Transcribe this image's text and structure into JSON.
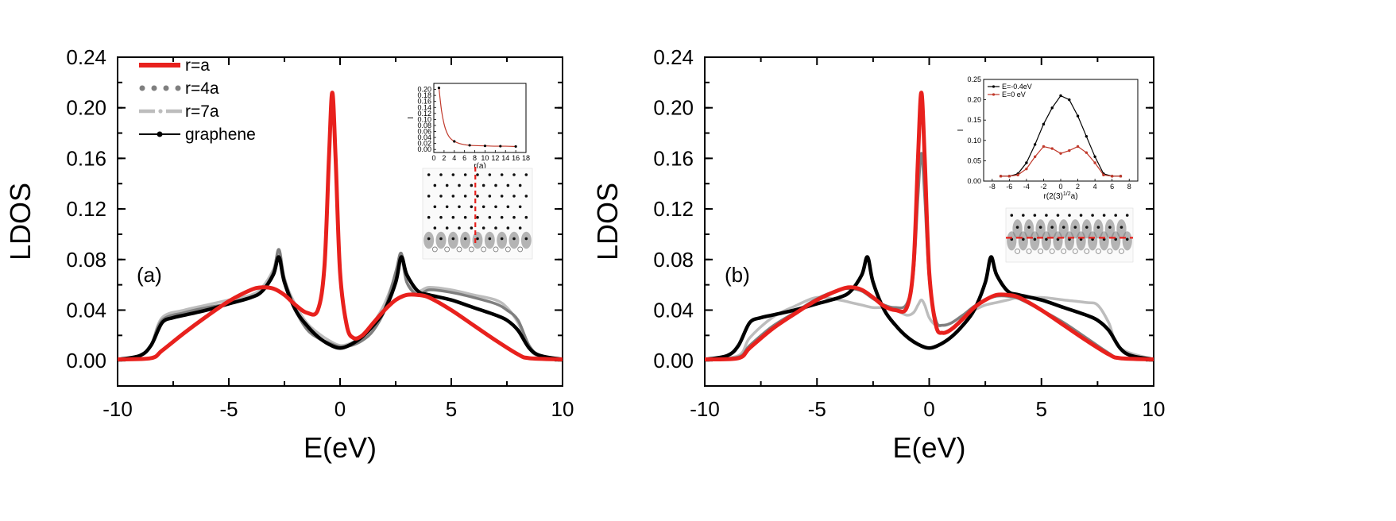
{
  "chart_data": [
    {
      "panel": "a",
      "type": "line",
      "panel_label": "(a)",
      "xlabel": "E(eV)",
      "ylabel": "LDOS",
      "xlim": [
        -10,
        10
      ],
      "ylim": [
        -0.02,
        0.24
      ],
      "xticks": [
        -10,
        -5,
        0,
        5,
        10
      ],
      "xtick_labels": [
        "-10",
        "-5",
        "0",
        "5",
        "10"
      ],
      "yticks": [
        0.0,
        0.04,
        0.08,
        0.12,
        0.16,
        0.2,
        0.24
      ],
      "ytick_labels": [
        "0.00",
        "0.04",
        "0.08",
        "0.12",
        "0.16",
        "0.20",
        "0.24"
      ],
      "legend": [
        {
          "label": "r=a",
          "color": "#e8211d",
          "style": "solid"
        },
        {
          "label": "r=4a",
          "color": "#7f7f7f",
          "style": "dotted"
        },
        {
          "label": "r=7a",
          "color": "#bdbdbd",
          "style": "dashdot"
        },
        {
          "label": "graphene",
          "color": "#000000",
          "style": "line-dot"
        }
      ],
      "series": [
        {
          "name": "r=a",
          "color": "#e8211d",
          "x": [
            -10,
            -8.5,
            -8,
            -7,
            -6,
            -5,
            -4,
            -3.5,
            -3,
            -2.5,
            -2,
            -1.5,
            -1,
            -0.7,
            -0.5,
            -0.35,
            -0.2,
            0,
            0.3,
            0.6,
            1,
            1.5,
            2,
            2.5,
            3,
            3.5,
            4,
            5,
            6,
            7,
            8,
            8.5,
            10
          ],
          "values": [
            0.001,
            0.002,
            0.008,
            0.022,
            0.035,
            0.047,
            0.056,
            0.058,
            0.057,
            0.052,
            0.044,
            0.038,
            0.04,
            0.075,
            0.16,
            0.212,
            0.16,
            0.07,
            0.028,
            0.018,
            0.02,
            0.03,
            0.04,
            0.048,
            0.052,
            0.052,
            0.05,
            0.04,
            0.028,
            0.016,
            0.005,
            0.002,
            0.001
          ]
        },
        {
          "name": "r=4a",
          "color": "#7f7f7f",
          "x": [
            -10,
            -9,
            -8.5,
            -8,
            -7,
            -6,
            -5,
            -4,
            -3.5,
            -3,
            -2.75,
            -2.5,
            -2,
            -1.5,
            -1,
            -0.5,
            0,
            0.5,
            1,
            1.5,
            2,
            2.5,
            2.75,
            3,
            3.5,
            4,
            5,
            6,
            7,
            7.5,
            8,
            8.5,
            9,
            10
          ],
          "values": [
            0.001,
            0.004,
            0.012,
            0.032,
            0.038,
            0.042,
            0.045,
            0.05,
            0.055,
            0.07,
            0.088,
            0.065,
            0.04,
            0.025,
            0.018,
            0.014,
            0.011,
            0.012,
            0.016,
            0.024,
            0.04,
            0.07,
            0.085,
            0.062,
            0.052,
            0.056,
            0.054,
            0.05,
            0.045,
            0.04,
            0.032,
            0.012,
            0.004,
            0.001
          ]
        },
        {
          "name": "r=7a",
          "color": "#bdbdbd",
          "x": [
            -10,
            -9,
            -8.5,
            -8,
            -7,
            -6,
            -5,
            -4,
            -3.5,
            -3,
            -2.75,
            -2.5,
            -2,
            -1.5,
            -1,
            -0.5,
            0,
            0.5,
            1,
            1.5,
            2,
            2.5,
            2.75,
            3,
            3.5,
            4,
            5,
            6,
            7,
            7.5,
            8,
            8.5,
            9,
            10
          ],
          "values": [
            0.001,
            0.004,
            0.012,
            0.034,
            0.04,
            0.044,
            0.048,
            0.052,
            0.058,
            0.072,
            0.086,
            0.064,
            0.044,
            0.03,
            0.022,
            0.016,
            0.012,
            0.014,
            0.02,
            0.03,
            0.045,
            0.068,
            0.082,
            0.062,
            0.055,
            0.058,
            0.056,
            0.052,
            0.048,
            0.042,
            0.03,
            0.01,
            0.003,
            0.001
          ]
        },
        {
          "name": "graphene",
          "color": "#000000",
          "x": [
            -10,
            -9,
            -8.5,
            -8,
            -7.5,
            -7,
            -6,
            -5,
            -4,
            -3.5,
            -3,
            -2.75,
            -2.5,
            -2,
            -1.5,
            -1,
            -0.5,
            0,
            0.5,
            1,
            1.5,
            2,
            2.5,
            2.75,
            3,
            3.5,
            4,
            5,
            6,
            7,
            7.5,
            8,
            8.5,
            9,
            10
          ],
          "values": [
            0.001,
            0.004,
            0.012,
            0.03,
            0.034,
            0.036,
            0.04,
            0.045,
            0.05,
            0.055,
            0.068,
            0.082,
            0.062,
            0.04,
            0.028,
            0.019,
            0.013,
            0.01,
            0.013,
            0.019,
            0.028,
            0.04,
            0.062,
            0.082,
            0.068,
            0.055,
            0.052,
            0.048,
            0.042,
            0.036,
            0.032,
            0.024,
            0.01,
            0.004,
            0.001
          ]
        }
      ],
      "inset": {
        "type": "line",
        "xlabel": "r(a)",
        "ylabel": "I",
        "xlim": [
          0,
          18
        ],
        "ylim": [
          -0.01,
          0.22
        ],
        "xticks": [
          0,
          2,
          4,
          6,
          8,
          10,
          12,
          14,
          16,
          18
        ],
        "xtick_labels": [
          "0",
          "2",
          "4",
          "6",
          "8",
          "10",
          "12",
          "14",
          "16",
          "18"
        ],
        "yticks": [
          0.0,
          0.02,
          0.04,
          0.06,
          0.08,
          0.1,
          0.12,
          0.14,
          0.16,
          0.18,
          0.2
        ],
        "ytick_labels": [
          "0.00",
          "0.02",
          "0.04",
          "0.06",
          "0.08",
          "0.10",
          "0.12",
          "0.14",
          "0.16",
          "0.18",
          "0.20"
        ],
        "series": [
          {
            "name": "fit",
            "color": "#c0392b",
            "style": "line",
            "x": [
              1,
              1.5,
              2,
              2.5,
              3,
              3.5,
              4,
              5,
              6,
              7,
              8,
              10,
              12,
              14,
              16
            ],
            "values": [
              0.205,
              0.13,
              0.085,
              0.058,
              0.042,
              0.033,
              0.027,
              0.02,
              0.016,
              0.014,
              0.013,
              0.012,
              0.011,
              0.011,
              0.01
            ]
          },
          {
            "name": "data",
            "color": "#000000",
            "style": "markers",
            "x": [
              1,
              4,
              7,
              10,
              13,
              16
            ],
            "values": [
              0.205,
              0.027,
              0.014,
              0.012,
              0.011,
              0.01
            ]
          }
        ]
      }
    },
    {
      "panel": "b",
      "type": "line",
      "panel_label": "(b)",
      "xlabel": "E(eV)",
      "ylabel": "LDOS",
      "xlim": [
        -10,
        10
      ],
      "ylim": [
        -0.02,
        0.24
      ],
      "xticks": [
        -10,
        -5,
        0,
        5,
        10
      ],
      "xtick_labels": [
        "-10",
        "-5",
        "0",
        "5",
        "10"
      ],
      "yticks": [
        0.0,
        0.04,
        0.08,
        0.12,
        0.16,
        0.2,
        0.24
      ],
      "ytick_labels": [
        "0.00",
        "0.04",
        "0.08",
        "0.12",
        "0.16",
        "0.20",
        "0.24"
      ],
      "series": [
        {
          "name": "r=a",
          "color": "#e8211d",
          "x": [
            -10,
            -8.5,
            -8,
            -7,
            -6,
            -5,
            -4,
            -3.5,
            -3,
            -2.5,
            -2,
            -1.5,
            -1,
            -0.7,
            -0.5,
            -0.35,
            -0.2,
            0,
            0.3,
            0.6,
            1,
            1.5,
            2,
            2.5,
            3,
            3.5,
            4,
            5,
            6,
            7,
            8,
            8.5,
            10
          ],
          "values": [
            0.001,
            0.002,
            0.01,
            0.025,
            0.037,
            0.048,
            0.056,
            0.058,
            0.056,
            0.05,
            0.043,
            0.04,
            0.042,
            0.075,
            0.16,
            0.212,
            0.16,
            0.07,
            0.028,
            0.022,
            0.025,
            0.033,
            0.042,
            0.048,
            0.052,
            0.052,
            0.05,
            0.04,
            0.028,
            0.016,
            0.005,
            0.002,
            0.001
          ]
        },
        {
          "name": "r=4a",
          "color": "#7f7f7f",
          "x": [
            -10,
            -8.5,
            -8,
            -7,
            -6,
            -5,
            -4,
            -3.5,
            -3,
            -2.5,
            -2,
            -1.5,
            -1,
            -0.7,
            -0.5,
            -0.35,
            -0.2,
            0,
            0.3,
            0.6,
            1,
            1.5,
            2,
            2.5,
            3,
            3.5,
            4,
            5,
            6,
            7,
            8,
            8.5,
            10
          ],
          "values": [
            0.001,
            0.003,
            0.012,
            0.027,
            0.038,
            0.049,
            0.056,
            0.057,
            0.055,
            0.049,
            0.044,
            0.042,
            0.045,
            0.07,
            0.13,
            0.164,
            0.13,
            0.065,
            0.032,
            0.028,
            0.03,
            0.036,
            0.043,
            0.048,
            0.051,
            0.051,
            0.049,
            0.04,
            0.03,
            0.018,
            0.006,
            0.002,
            0.001
          ]
        },
        {
          "name": "r=7a",
          "color": "#bdbdbd",
          "x": [
            -10,
            -8.5,
            -8,
            -7,
            -6,
            -5,
            -4,
            -3.5,
            -3,
            -2.5,
            -2,
            -1.5,
            -1,
            -0.7,
            -0.5,
            -0.35,
            -0.2,
            0,
            0.3,
            0.6,
            1,
            1.5,
            2,
            2.5,
            3,
            3.5,
            4,
            5,
            6,
            7,
            7.5,
            8,
            8.5,
            10
          ],
          "values": [
            0.001,
            0.004,
            0.018,
            0.034,
            0.043,
            0.05,
            0.048,
            0.046,
            0.044,
            0.042,
            0.042,
            0.04,
            0.036,
            0.038,
            0.044,
            0.048,
            0.044,
            0.034,
            0.028,
            0.028,
            0.03,
            0.036,
            0.04,
            0.044,
            0.046,
            0.048,
            0.05,
            0.05,
            0.048,
            0.046,
            0.044,
            0.03,
            0.01,
            0.001
          ]
        },
        {
          "name": "graphene",
          "color": "#000000",
          "x": [
            -10,
            -9,
            -8.5,
            -8,
            -7.5,
            -7,
            -6,
            -5,
            -4,
            -3.5,
            -3,
            -2.75,
            -2.5,
            -2,
            -1.5,
            -1,
            -0.5,
            0,
            0.5,
            1,
            1.5,
            2,
            2.5,
            2.75,
            3,
            3.5,
            4,
            5,
            6,
            7,
            7.5,
            8,
            8.5,
            9,
            10
          ],
          "values": [
            0.001,
            0.004,
            0.012,
            0.03,
            0.034,
            0.036,
            0.04,
            0.045,
            0.05,
            0.055,
            0.068,
            0.082,
            0.062,
            0.04,
            0.028,
            0.019,
            0.013,
            0.01,
            0.013,
            0.019,
            0.028,
            0.04,
            0.062,
            0.082,
            0.068,
            0.055,
            0.052,
            0.048,
            0.042,
            0.036,
            0.032,
            0.024,
            0.01,
            0.004,
            0.001
          ]
        }
      ],
      "inset": {
        "type": "line",
        "xlabel": "r(2(3)",
        "xlabel_superscript": "1/2",
        "xlabel_suffix": "a)",
        "ylabel": "I",
        "xlim": [
          -9,
          9
        ],
        "ylim": [
          0.0,
          0.25
        ],
        "xticks": [
          -8,
          -6,
          -4,
          -2,
          0,
          2,
          4,
          6,
          8
        ],
        "xtick_labels": [
          "-8",
          "-6",
          "-4",
          "-2",
          "0",
          "2",
          "4",
          "6",
          "8"
        ],
        "yticks": [
          0.0,
          0.05,
          0.1,
          0.15,
          0.2,
          0.25
        ],
        "ytick_labels": [
          "0.00",
          "0.05",
          "0.10",
          "0.15",
          "0.20",
          "0.25"
        ],
        "legend": [
          {
            "label": "E=-0.4eV",
            "color": "#000000"
          },
          {
            "label": "E=0 eV",
            "color": "#c0392b"
          }
        ],
        "series": [
          {
            "name": "E=-0.4eV",
            "color": "#000000",
            "x": [
              -7,
              -6,
              -5,
              -4,
              -3,
              -2,
              -1,
              0,
              1,
              2,
              3,
              4,
              5,
              6,
              7
            ],
            "values": [
              0.012,
              0.012,
              0.018,
              0.045,
              0.09,
              0.14,
              0.18,
              0.21,
              0.2,
              0.16,
              0.11,
              0.06,
              0.018,
              0.012,
              0.012
            ]
          },
          {
            "name": "E=0 eV",
            "color": "#c0392b",
            "x": [
              -7,
              -6,
              -5,
              -4,
              -3,
              -2,
              -1,
              0,
              1,
              2,
              3,
              4,
              5,
              6,
              7
            ],
            "values": [
              0.012,
              0.012,
              0.015,
              0.03,
              0.06,
              0.085,
              0.08,
              0.068,
              0.075,
              0.085,
              0.07,
              0.045,
              0.015,
              0.012,
              0.012
            ]
          }
        ]
      }
    }
  ]
}
